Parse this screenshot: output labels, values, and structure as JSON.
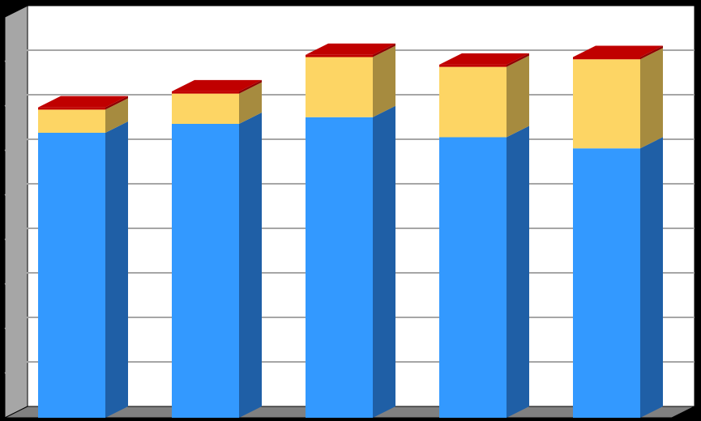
{
  "colors": {
    "background": "#000000",
    "plot_back": "#ffffff",
    "gridline": "#a6a6a6",
    "side_wall": "#a6a6a6",
    "floor": "#808080",
    "series": [
      {
        "front": "#3399ff",
        "side": "#1f5fa6",
        "top": "#1f5fa6"
      },
      {
        "front": "#fdd564",
        "side": "#a68b3f",
        "top": "#c9a94f"
      },
      {
        "front": "#c00000",
        "side": "#900000",
        "top": "#c00000"
      }
    ]
  },
  "chart_data": {
    "type": "bar",
    "stacked": true,
    "three_d": true,
    "categories": [
      "",
      "",
      "",
      "",
      ""
    ],
    "series": [
      {
        "values": [
          6.4,
          6.6,
          6.75,
          6.3,
          6.05
        ]
      },
      {
        "values": [
          0.52,
          0.68,
          1.35,
          1.58,
          2.0
        ]
      },
      {
        "values": [
          0.05,
          0.05,
          0.05,
          0.05,
          0.05
        ]
      }
    ],
    "ylim": [
      0,
      9
    ],
    "yticks": [
      0,
      1,
      2,
      3,
      4,
      5,
      6,
      7,
      8,
      9
    ],
    "grid": true,
    "legend": "none",
    "title": "",
    "xlabel": "",
    "ylabel": ""
  }
}
